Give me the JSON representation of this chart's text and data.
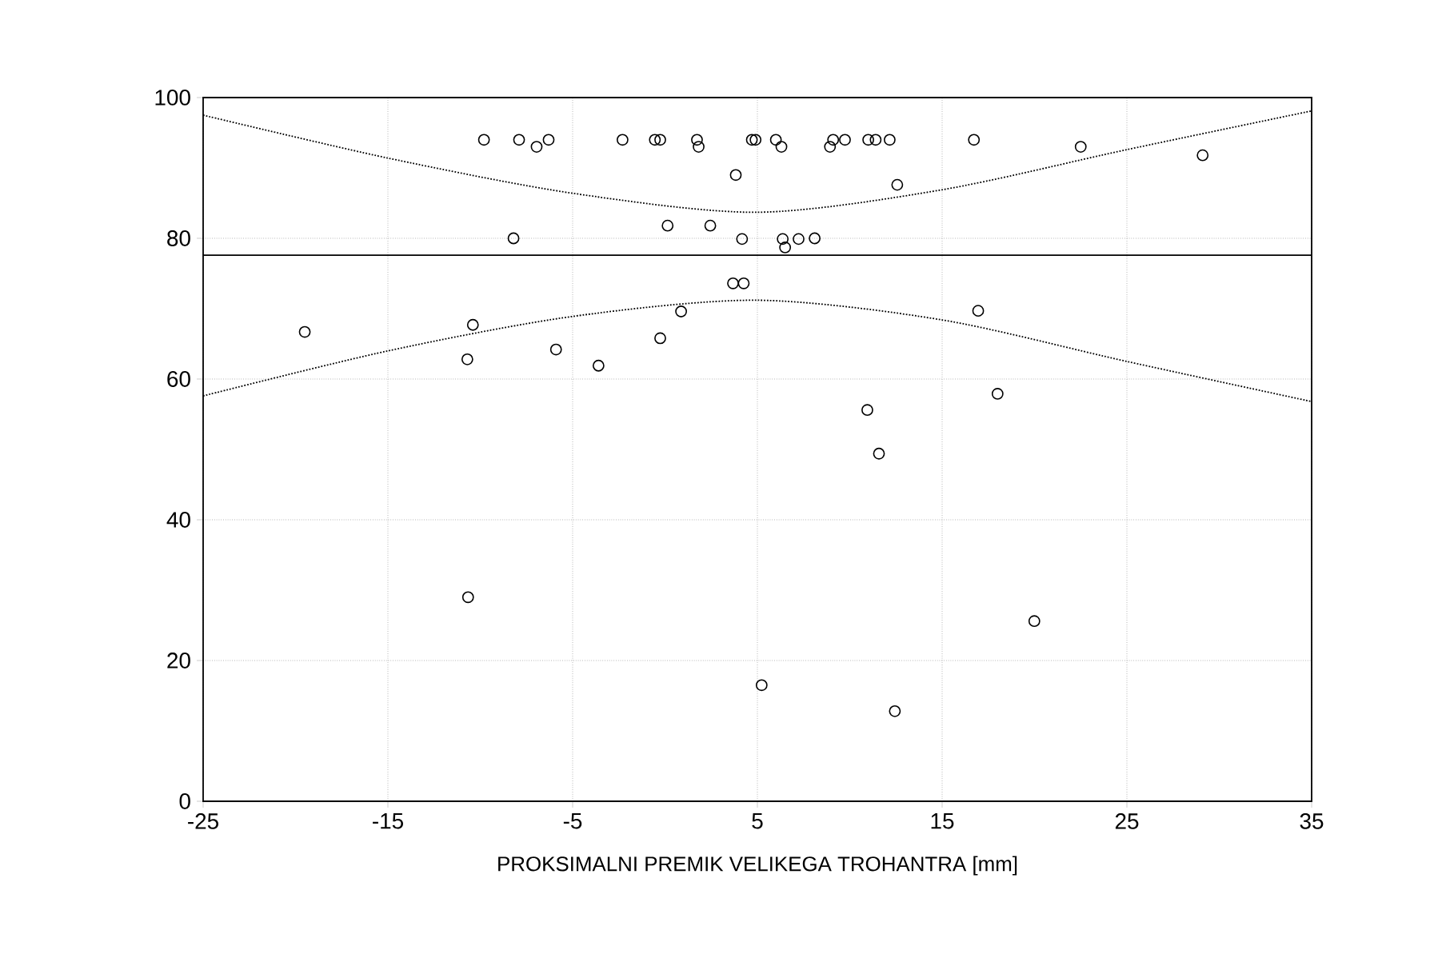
{
  "chart_data": {
    "type": "scatter",
    "xlabel": "PROKSIMALNI PREMIK VELIKEGA TROHANTRA [mm]",
    "xlim": [
      -25,
      35
    ],
    "ylim": [
      0,
      100
    ],
    "xticks": [
      -25,
      -15,
      -5,
      5,
      15,
      25,
      35
    ],
    "yticks": [
      0,
      20,
      40,
      60,
      80,
      100
    ],
    "grid": true,
    "series": [
      {
        "marker": "circle",
        "color": "#000000",
        "x": [
          -9.8,
          -7.9,
          -6.95,
          -6.3,
          -2.3,
          -0.55,
          -0.26,
          1.73,
          1.82,
          -8.2,
          0.14,
          2.45,
          -19.5,
          -10.4,
          -10.7,
          -5.9,
          -3.6,
          -0.26,
          0.87,
          4.7,
          4.9,
          3.83,
          4.17,
          6.0,
          6.3,
          6.37,
          6.5,
          7.23,
          8.1,
          8.93,
          9.1,
          9.74,
          11.0,
          11.4,
          12.16,
          12.57,
          16.72,
          22.5,
          29.1,
          3.68,
          4.26,
          16.95,
          18.0,
          10.95,
          11.58,
          -10.66,
          5.23,
          12.44,
          19.99
        ],
        "values": [
          94,
          94,
          93,
          94,
          94,
          94,
          94,
          94,
          93,
          80,
          81.8,
          81.8,
          66.7,
          67.7,
          62.8,
          64.2,
          61.9,
          65.8,
          69.6,
          94,
          94,
          89,
          79.9,
          94,
          93,
          79.9,
          78.7,
          79.9,
          80,
          93,
          94,
          94,
          94,
          94,
          94,
          87.6,
          94,
          93,
          91.8,
          73.6,
          73.6,
          69.7,
          57.9,
          55.6,
          49.4,
          29,
          16.5,
          12.8,
          25.6
        ]
      },
      {
        "type": "line",
        "line_style": "dotted",
        "color": "#000000",
        "x": [
          -25,
          -15,
          -5,
          5,
          15,
          25,
          35
        ],
        "values": [
          97.5,
          91.4,
          86.4,
          83.7,
          86.9,
          92.6,
          98.1
        ]
      },
      {
        "type": "line",
        "line_style": "dotted",
        "color": "#000000",
        "x": [
          -25,
          -15,
          -5,
          5,
          15,
          25,
          35
        ],
        "values": [
          57.6,
          64.0,
          68.9,
          71.2,
          68.4,
          62.5,
          56.8
        ]
      },
      {
        "type": "line",
        "line_style": "solid",
        "color": "#000000",
        "x": [
          -25,
          35
        ],
        "values": [
          77.6,
          77.6
        ]
      }
    ]
  }
}
